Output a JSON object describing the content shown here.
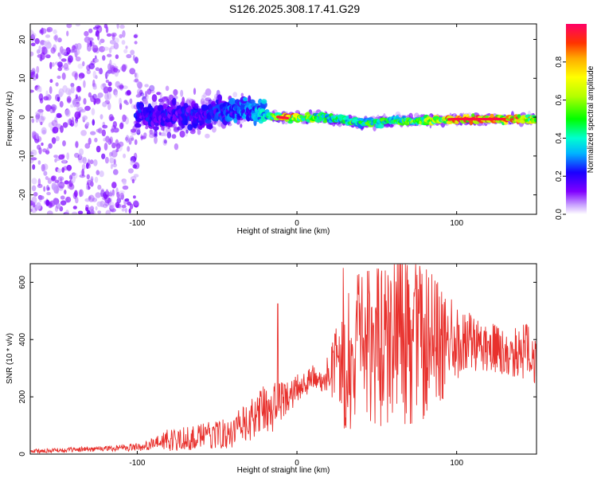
{
  "title": "S126.2025.308.17.41.G29",
  "chart_data": [
    {
      "type": "heatmap",
      "xlabel": "Height of straight line (km)",
      "ylabel": "Frequency (Hz)",
      "xlim": [
        -167,
        150
      ],
      "ylim": [
        -25,
        24
      ],
      "xticks": [
        -100,
        0,
        100
      ],
      "xtick_labels": [
        "-100",
        "0",
        "100"
      ],
      "yticks": [
        -20,
        -10,
        0,
        10,
        20
      ],
      "ytick_labels": [
        "-20",
        "-10",
        "0",
        "10",
        "20"
      ],
      "colorbar": {
        "label": "Normalized spectral amplitude",
        "range": [
          0,
          1
        ],
        "ticks": [
          0,
          0.2,
          0.4,
          0.6,
          0.8
        ],
        "tick_labels": [
          "0.0",
          "0.2",
          "0.4",
          "0.6",
          "0.8"
        ],
        "colormap": "rainbow"
      },
      "ridge": {
        "description_points_x": [
          -60,
          -40,
          -25,
          -15,
          -5,
          5,
          15,
          25,
          40,
          60,
          80,
          100,
          120,
          150
        ],
        "frequency_hz": [
          0.5,
          2.0,
          1.5,
          0.2,
          -0.3,
          -0.2,
          0.0,
          -0.5,
          -1.5,
          -1.0,
          -0.8,
          -0.5,
          -0.5,
          -0.5
        ],
        "peak_amplitude": [
          0.2,
          0.25,
          0.3,
          0.5,
          0.8,
          0.6,
          0.5,
          0.4,
          0.5,
          0.45,
          0.6,
          0.8,
          0.9,
          0.7
        ]
      }
    },
    {
      "type": "line",
      "xlabel": "Height of straight line (km)",
      "ylabel": "SNR (10 * v/v)",
      "xlim": [
        -167,
        150
      ],
      "ylim": [
        0,
        665
      ],
      "xticks": [
        -100,
        0,
        100
      ],
      "xtick_labels": [
        "-100",
        "0",
        "100"
      ],
      "yticks": [
        0,
        200,
        400,
        600
      ],
      "ytick_labels": [
        "0",
        "200",
        "400",
        "600"
      ],
      "color": "#e8312d",
      "envelope": {
        "x": [
          -167,
          -140,
          -120,
          -100,
          -90,
          -80,
          -70,
          -60,
          -50,
          -40,
          -30,
          -20,
          -12,
          -10,
          -5,
          0,
          10,
          20,
          25,
          30,
          40,
          50,
          60,
          70,
          80,
          90,
          100,
          110,
          120,
          130,
          140,
          150
        ],
        "center": [
          10,
          15,
          20,
          25,
          35,
          50,
          55,
          60,
          70,
          80,
          110,
          160,
          170,
          185,
          200,
          230,
          260,
          280,
          300,
          330,
          360,
          380,
          390,
          400,
          390,
          380,
          390,
          390,
          380,
          350,
          360,
          350
        ],
        "amplitude": [
          8,
          8,
          10,
          15,
          20,
          40,
          45,
          45,
          50,
          60,
          70,
          90,
          90,
          70,
          60,
          50,
          50,
          60,
          150,
          250,
          280,
          290,
          300,
          300,
          280,
          200,
          140,
          100,
          90,
          80,
          90,
          120
        ]
      },
      "spikes": [
        {
          "x": -12,
          "y": 525
        },
        {
          "x": 29,
          "y": 650
        },
        {
          "x": 45,
          "y": 640
        },
        {
          "x": 57,
          "y": 625
        },
        {
          "x": 69,
          "y": 660
        },
        {
          "x": 81,
          "y": 645
        },
        {
          "x": 88,
          "y": 600
        },
        {
          "x": 144,
          "y": 450
        }
      ]
    }
  ]
}
